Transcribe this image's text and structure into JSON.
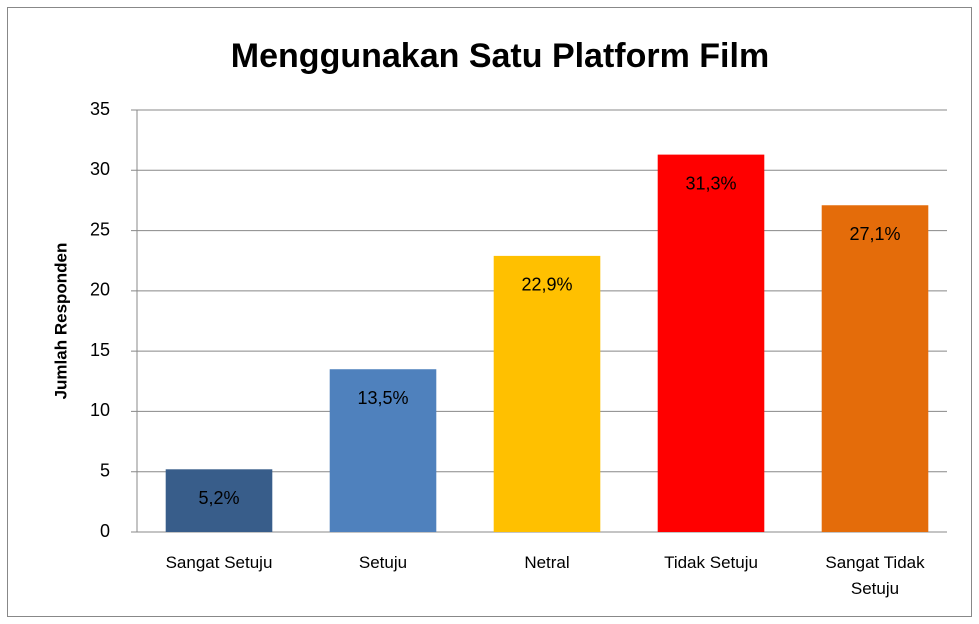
{
  "chart_data": {
    "type": "bar",
    "title": "Menggunakan Satu Platform Film",
    "y_label": "Jumlah Responden",
    "categories": [
      "Sangat Setuju",
      "Setuju",
      "Netral",
      "Tidak Setuju",
      "Sangat Tidak Setuju"
    ],
    "values": [
      5.2,
      13.5,
      22.9,
      31.3,
      27.1
    ],
    "value_labels": [
      "5,2%",
      "13,5%",
      "22,9%",
      "31,3%",
      "27,1%"
    ],
    "colors": [
      "#385d8a",
      "#4f81bd",
      "#ffc000",
      "#ff0000",
      "#e46c0a"
    ],
    "ylim": [
      0,
      35
    ],
    "yticks": [
      0,
      5,
      10,
      15,
      20,
      25,
      30,
      35
    ],
    "grid": true
  }
}
